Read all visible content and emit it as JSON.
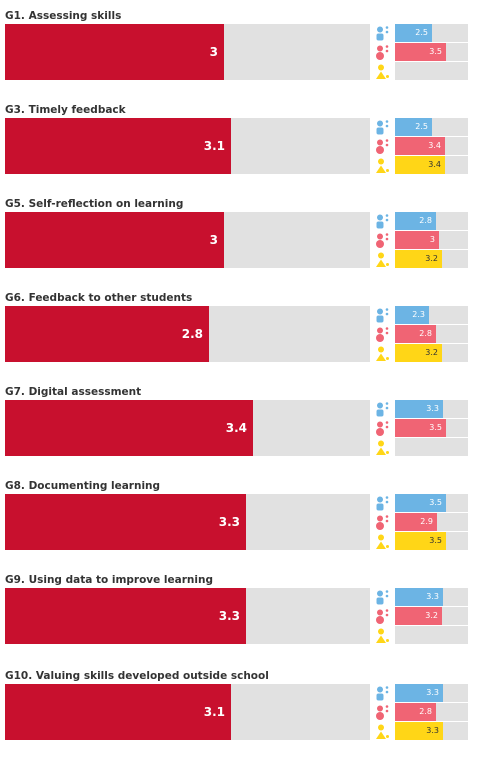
{
  "chart_data": {
    "type": "bar",
    "xlim": [
      0,
      5
    ],
    "colors": {
      "main": "#c8102e",
      "track": "#e1e1e1",
      "school_leaders": "#6cb4e4",
      "teachers": "#f06474",
      "students": "#ffd617"
    },
    "legend_icons": [
      "school-leader-icon",
      "teacher-icon",
      "student-icon"
    ],
    "items": [
      {
        "label": "G1. Assessing skills",
        "value": "3",
        "sub": [
          {
            "group": "school_leaders",
            "value": "2.5"
          },
          {
            "group": "teachers",
            "value": "3.5"
          },
          {
            "group": "students",
            "value": ""
          }
        ]
      },
      {
        "label": "G3. Timely feedback",
        "value": "3.1",
        "sub": [
          {
            "group": "school_leaders",
            "value": "2.5"
          },
          {
            "group": "teachers",
            "value": "3.4"
          },
          {
            "group": "students",
            "value": "3.4"
          }
        ]
      },
      {
        "label": "G5. Self-reflection on learning",
        "value": "3",
        "sub": [
          {
            "group": "school_leaders",
            "value": "2.8"
          },
          {
            "group": "teachers",
            "value": "3"
          },
          {
            "group": "students",
            "value": "3.2"
          }
        ]
      },
      {
        "label": "G6. Feedback to other students",
        "value": "2.8",
        "sub": [
          {
            "group": "school_leaders",
            "value": "2.3"
          },
          {
            "group": "teachers",
            "value": "2.8"
          },
          {
            "group": "students",
            "value": "3.2"
          }
        ]
      },
      {
        "label": "G7. Digital assessment",
        "value": "3.4",
        "sub": [
          {
            "group": "school_leaders",
            "value": "3.3"
          },
          {
            "group": "teachers",
            "value": "3.5"
          },
          {
            "group": "students",
            "value": ""
          }
        ]
      },
      {
        "label": "G8. Documenting learning",
        "value": "3.3",
        "sub": [
          {
            "group": "school_leaders",
            "value": "3.5"
          },
          {
            "group": "teachers",
            "value": "2.9"
          },
          {
            "group": "students",
            "value": "3.5"
          }
        ]
      },
      {
        "label": "G9. Using data to improve learning",
        "value": "3.3",
        "sub": [
          {
            "group": "school_leaders",
            "value": "3.3"
          },
          {
            "group": "teachers",
            "value": "3.2"
          },
          {
            "group": "students",
            "value": ""
          }
        ]
      },
      {
        "label": "G10. Valuing skills developed outside school",
        "value": "3.1",
        "sub": [
          {
            "group": "school_leaders",
            "value": "3.3"
          },
          {
            "group": "teachers",
            "value": "2.8"
          },
          {
            "group": "students",
            "value": "3.3"
          }
        ]
      }
    ]
  }
}
